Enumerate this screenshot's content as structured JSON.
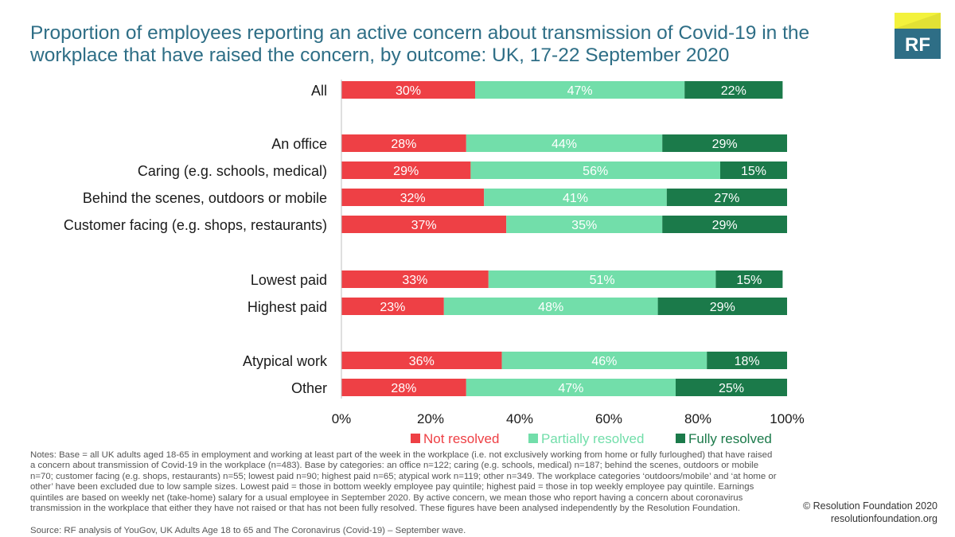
{
  "header": {
    "title": "Proportion of employees reporting an active concern about transmission of Covid-19 in the workplace that have raised the concern, by outcome: UK, 17-22 September 2020",
    "logo_text": "RF"
  },
  "colors": {
    "not_resolved": "#ee4045",
    "partially_resolved": "#72deaa",
    "fully_resolved": "#1b7a4a",
    "title": "#2e6e86",
    "logo_bg": "#2e6e86",
    "logo_accent": "#f3f23c"
  },
  "chart_data": {
    "type": "bar",
    "orientation": "horizontal",
    "stacked": true,
    "categories": [
      "All",
      "An office",
      "Caring (e.g. schools, medical)",
      "Behind the scenes, outdoors or mobile",
      "Customer facing (e.g. shops, restaurants)",
      "Lowest paid",
      "Highest paid",
      "Atypical work",
      "Other"
    ],
    "groups": [
      [
        0
      ],
      [
        1,
        2,
        3,
        4
      ],
      [
        5,
        6
      ],
      [
        7,
        8
      ]
    ],
    "series": [
      {
        "name": "Not resolved",
        "values": [
          30,
          28,
          29,
          32,
          37,
          33,
          23,
          36,
          28
        ],
        "labels": [
          "30%",
          "28%",
          "29%",
          "32%",
          "37%",
          "33%",
          "23%",
          "36%",
          "28%"
        ]
      },
      {
        "name": "Partially resolved",
        "values": [
          47,
          44,
          56,
          41,
          35,
          51,
          48,
          46,
          47
        ],
        "labels": [
          "47%",
          "44%",
          "56%",
          "41%",
          "35%",
          "51%",
          "48%",
          "46%",
          "47%"
        ]
      },
      {
        "name": "Fully resolved",
        "values": [
          22,
          29,
          15,
          27,
          29,
          15,
          29,
          18,
          25
        ],
        "labels": [
          "22%",
          "29%",
          "15%",
          "27%",
          "29%",
          "15%",
          "29%",
          "18%",
          "25%"
        ]
      }
    ],
    "xlim": [
      0,
      100
    ],
    "xticks": [
      "0%",
      "20%",
      "40%",
      "60%",
      "80%",
      "100%"
    ],
    "legend_position": "bottom",
    "grid": false
  },
  "footer": {
    "notes": "Notes: Base = all UK adults aged 18-65 in employment and working at least part of the week in the workplace (i.e. not exclusively working from home or fully furloughed) that have raised a concern about transmission of Covid-19 in the workplace (n=483). Base by categories: an office n=122; caring (e.g. schools, medical) n=187; behind the scenes, outdoors or mobile n=70; customer facing (e.g. shops, restaurants) n=55; lowest paid n=90; highest paid n=65; atypical work n=119; other n=349. The workplace categories ‘outdoors/mobile’ and ‘at home or other’ have been excluded due to low sample sizes. Lowest paid = those in bottom weekly employee pay quintile; highest paid = those in top weekly employee pay quintile. Earnings quintiles are based on weekly net (take-home) salary for a usual employee in September 2020. By active concern, we mean those who report having a concern about coronavirus transmission in the workplace that either they have not raised or that has not been fully resolved. These figures have been analysed independently by the Resolution Foundation.",
    "source": "Source: RF analysis of YouGov, UK Adults Age 18 to 65 and The Coronavirus (Covid-19) – September wave.",
    "copyright": "© Resolution Foundation 2020",
    "website": "resolutionfoundation.org"
  }
}
